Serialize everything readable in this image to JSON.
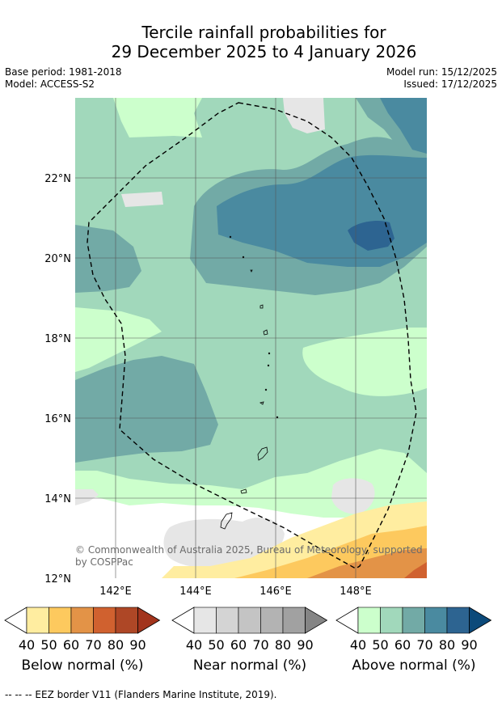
{
  "title": {
    "line1": "Tercile rainfall probabilities for",
    "line2": "29 December 2025 to 4 January 2026"
  },
  "meta": {
    "base_period": "Base period: 1981-2018",
    "model": "Model: ACCESS-S2",
    "model_run": "Model run: 15/12/2025",
    "issued": "Issued: 17/12/2025"
  },
  "map": {
    "lat_labels": [
      "22°N",
      "20°N",
      "18°N",
      "16°N",
      "14°N",
      "12°N"
    ],
    "lon_labels": [
      "142°E",
      "144°E",
      "146°E",
      "148°E"
    ],
    "copyright_line1": "© Commonwealth of Australia 2025, Bureau of Meteorology, supported",
    "copyright_line2": "by COSPPac",
    "category_colors": {
      "above_40": "#ccffcc",
      "above_50": "#a1d8bb",
      "above_60": "#72aaa6",
      "above_70": "#4a8aa0",
      "above_80": "#2d6491",
      "above_90": "#0c4a7a",
      "near_40": "#e6e6e6",
      "below_40": "#ffeda0",
      "below_50": "#fdc95e",
      "below_60": "#e39347",
      "below_70": "#d0612f"
    }
  },
  "colorbars": [
    {
      "label": "Below normal (%)",
      "ticks": [
        "40",
        "50",
        "60",
        "70",
        "80",
        "90"
      ],
      "colors": [
        "#ffeda0",
        "#fdc95e",
        "#e39347",
        "#d0612f",
        "#ae4726",
        "#a2341c"
      ]
    },
    {
      "label": "Near normal (%)",
      "ticks": [
        "40",
        "50",
        "60",
        "70",
        "80",
        "90"
      ],
      "colors": [
        "#e6e6e6",
        "#d4d4d4",
        "#c4c4c4",
        "#b3b3b3",
        "#a1a1a1",
        "#858585"
      ]
    },
    {
      "label": "Above normal (%)",
      "ticks": [
        "40",
        "50",
        "60",
        "70",
        "80",
        "90"
      ],
      "colors": [
        "#ccffcc",
        "#a1d8bb",
        "#72aaa6",
        "#4a8aa0",
        "#2d6491",
        "#0c4a7a"
      ]
    }
  ],
  "footnote": "--  --  -- EEZ border V11 (Flanders Marine Institute, 2019)."
}
